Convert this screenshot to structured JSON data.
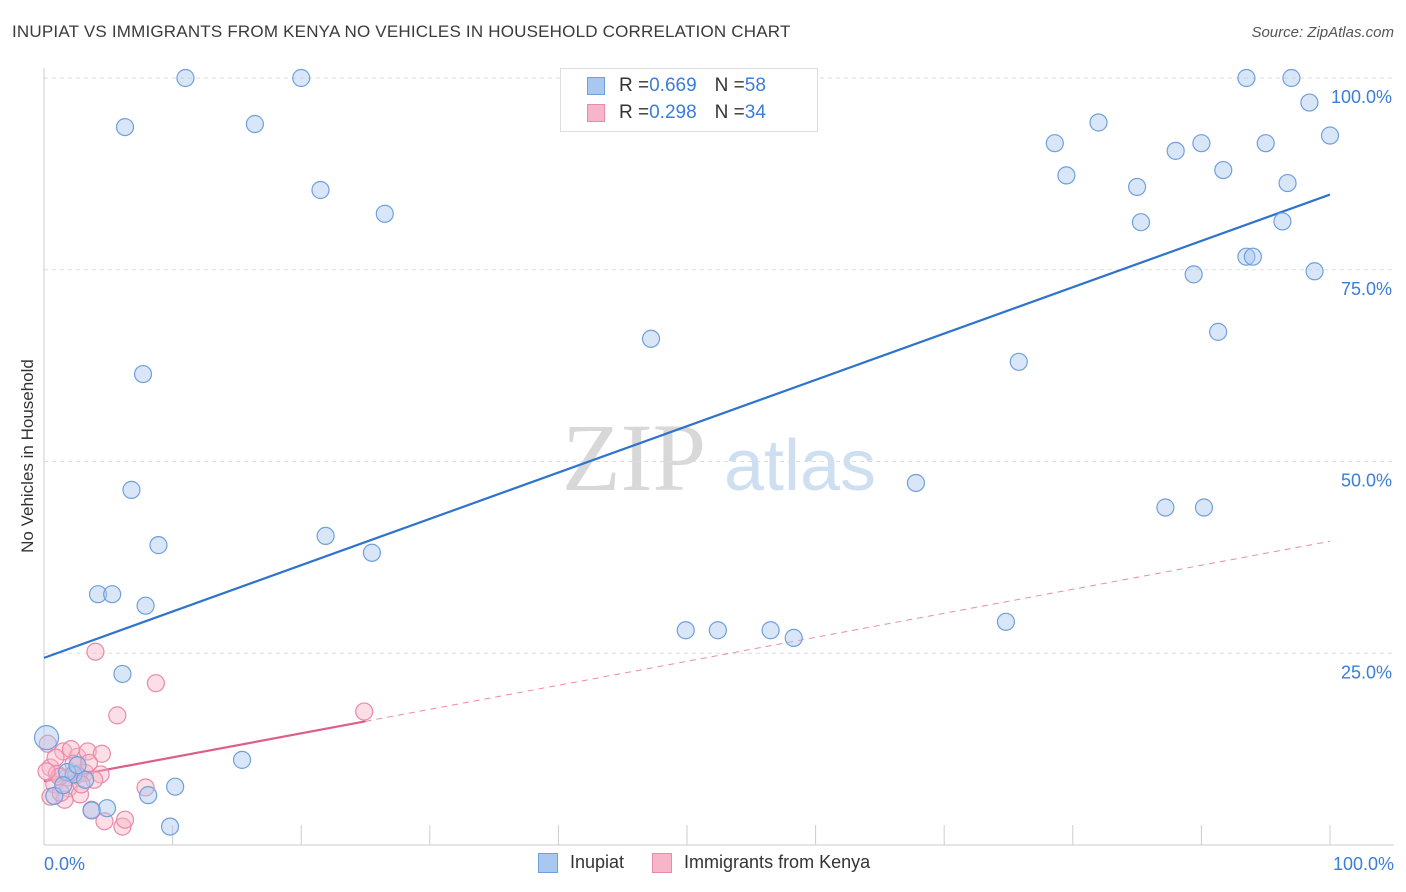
{
  "title": "INUPIAT VS IMMIGRANTS FROM KENYA NO VEHICLES IN HOUSEHOLD CORRELATION CHART",
  "source": "Source: ZipAtlas.com",
  "watermark": {
    "zip": "ZIP",
    "atlas": "atlas"
  },
  "legend": {
    "rows": [
      {
        "r_label": "R = ",
        "r_value": "0.669",
        "n_label": "N = ",
        "n_value": "58"
      },
      {
        "r_label": "R = ",
        "r_value": "0.298",
        "n_label": "N = ",
        "n_value": "34"
      }
    ]
  },
  "bottom_legend": [
    "Inupiat",
    "Immigrants from Kenya"
  ],
  "colors": {
    "inupiat_fill": "#a8c8f0",
    "inupiat_stroke": "#6fa0dc",
    "inupiat_line": "#2f74cc",
    "kenya_fill": "#f6b5c8",
    "kenya_stroke": "#e98aa8",
    "kenya_line": "#e05c8a",
    "axis_label": "#3b7dd8",
    "grid": "#dddddd"
  },
  "chart_data": {
    "type": "scatter",
    "title": "INUPIAT VS IMMIGRANTS FROM KENYA NO VEHICLES IN HOUSEHOLD CORRELATION CHART",
    "xlabel": "",
    "ylabel": "No Vehicles in Household",
    "xlim": [
      0,
      100
    ],
    "ylim": [
      0,
      100
    ],
    "x_ticks": [
      "0.0%",
      "100.0%"
    ],
    "y_ticks": [
      {
        "value": 25,
        "label": "25.0%"
      },
      {
        "value": 50,
        "label": "50.0%"
      },
      {
        "value": 75,
        "label": "75.0%"
      },
      {
        "value": 100,
        "label": "100.0%"
      }
    ],
    "grid": true,
    "legend_position": "top-center",
    "series": [
      {
        "name": "Inupiat",
        "R": 0.669,
        "N": 58,
        "trend": {
          "x": [
            0,
            100
          ],
          "y": [
            24.4,
            84.8
          ]
        },
        "points": [
          [
            11,
            100
          ],
          [
            20,
            100
          ],
          [
            93.5,
            100
          ],
          [
            97,
            100
          ],
          [
            6.3,
            93.6
          ],
          [
            16.4,
            94
          ],
          [
            98.4,
            96.8
          ],
          [
            100,
            92.5
          ],
          [
            82,
            94.2
          ],
          [
            78.6,
            91.5
          ],
          [
            90,
            91.5
          ],
          [
            95,
            91.5
          ],
          [
            88,
            90.5
          ],
          [
            91.7,
            88
          ],
          [
            21.5,
            85.4
          ],
          [
            79.5,
            87.3
          ],
          [
            85,
            85.8
          ],
          [
            96.7,
            86.3
          ],
          [
            26.5,
            82.3
          ],
          [
            85.3,
            81.2
          ],
          [
            96.3,
            81.3
          ],
          [
            93.5,
            76.7
          ],
          [
            94,
            76.7
          ],
          [
            89.4,
            74.4
          ],
          [
            98.8,
            74.8
          ],
          [
            91.3,
            66.9
          ],
          [
            47.2,
            66
          ],
          [
            75.8,
            63
          ],
          [
            7.7,
            61.4
          ],
          [
            67.8,
            47.2
          ],
          [
            6.8,
            46.3
          ],
          [
            87.2,
            44
          ],
          [
            90.2,
            44
          ],
          [
            8.9,
            39.1
          ],
          [
            21.9,
            40.3
          ],
          [
            25.5,
            38.1
          ],
          [
            4.2,
            32.7
          ],
          [
            5.3,
            32.7
          ],
          [
            7.9,
            31.2
          ],
          [
            49.9,
            28
          ],
          [
            52.4,
            28
          ],
          [
            56.5,
            28
          ],
          [
            58.3,
            27
          ],
          [
            74.8,
            29.1
          ],
          [
            6.1,
            22.3
          ],
          [
            0.2,
            14
          ],
          [
            15.4,
            11.1
          ],
          [
            2.3,
            9.2
          ],
          [
            10.2,
            7.6
          ],
          [
            8.1,
            6.5
          ],
          [
            4.9,
            4.8
          ],
          [
            3.7,
            4.5
          ],
          [
            9.8,
            2.4
          ],
          [
            0.8,
            6.4
          ],
          [
            3.2,
            8.5
          ],
          [
            1.8,
            9.5
          ],
          [
            2.6,
            10.4
          ],
          [
            1.5,
            7.8
          ]
        ]
      },
      {
        "name": "Immigrants from Kenya",
        "R": 0.298,
        "N": 34,
        "trend": {
          "x": [
            0,
            100
          ],
          "y": [
            8.3,
            39.6
          ]
        },
        "trend_solid_to_x": 25,
        "points": [
          [
            24.9,
            17.4
          ],
          [
            4,
            25.2
          ],
          [
            8.7,
            21.1
          ],
          [
            5.7,
            16.9
          ],
          [
            0.3,
            13.2
          ],
          [
            1.5,
            12.2
          ],
          [
            2.6,
            11.5
          ],
          [
            3.4,
            12.2
          ],
          [
            2.1,
            12.5
          ],
          [
            0.5,
            10.1
          ],
          [
            1,
            9.3
          ],
          [
            1.8,
            8.8
          ],
          [
            2.5,
            9.1
          ],
          [
            3.2,
            9.4
          ],
          [
            4.4,
            9.2
          ],
          [
            0.8,
            7.9
          ],
          [
            1.9,
            7.4
          ],
          [
            2.8,
            6.6
          ],
          [
            0.5,
            6.3
          ],
          [
            1.6,
            5.9
          ],
          [
            3.7,
            4.6
          ],
          [
            4.7,
            3.1
          ],
          [
            6.1,
            2.4
          ],
          [
            6.3,
            3.3
          ],
          [
            7.9,
            7.5
          ],
          [
            1.2,
            8.9
          ],
          [
            2.3,
            10.6
          ],
          [
            3.9,
            8.5
          ],
          [
            0.9,
            11.4
          ],
          [
            2.9,
            7.9
          ],
          [
            4.5,
            11.9
          ],
          [
            3.5,
            10.7
          ],
          [
            1.3,
            6.8
          ],
          [
            0.2,
            9.6
          ]
        ]
      }
    ]
  }
}
